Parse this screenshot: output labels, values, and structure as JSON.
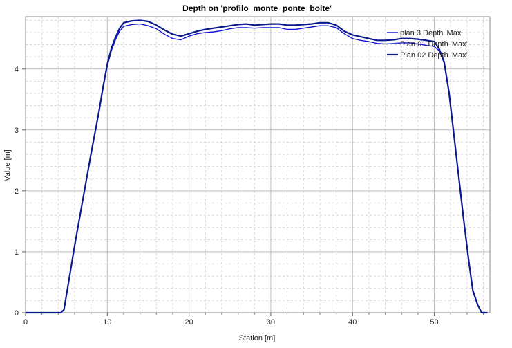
{
  "chart_data": {
    "type": "line",
    "title": "Depth on 'profilo_monte_ponte_boite'",
    "xlabel": "Station [m]",
    "ylabel": "Value [m]",
    "xlim": [
      0,
      56.8
    ],
    "ylim": [
      0,
      4.86
    ],
    "x_ticks": [
      0,
      10,
      20,
      30,
      40,
      50
    ],
    "y_ticks": [
      0,
      1,
      2,
      3,
      4
    ],
    "grid": true,
    "legend_position": "top-right",
    "series": [
      {
        "name": "plan 3 Depth 'Max'",
        "color": "#1515d6",
        "width": 1.4,
        "points": [
          [
            0,
            0
          ],
          [
            2,
            0
          ],
          [
            4.3,
            0
          ],
          [
            4.7,
            0.05
          ],
          [
            5.2,
            0.45
          ],
          [
            6,
            1.1
          ],
          [
            7,
            1.85
          ],
          [
            8,
            2.6
          ],
          [
            9,
            3.3
          ],
          [
            9.5,
            3.7
          ],
          [
            10,
            4.05
          ],
          [
            10.5,
            4.3
          ],
          [
            11,
            4.48
          ],
          [
            11.5,
            4.62
          ],
          [
            12,
            4.7
          ],
          [
            13,
            4.73
          ],
          [
            14,
            4.74
          ],
          [
            15,
            4.71
          ],
          [
            16,
            4.66
          ],
          [
            17,
            4.57
          ],
          [
            18,
            4.5
          ],
          [
            19,
            4.48
          ],
          [
            20,
            4.54
          ],
          [
            21,
            4.58
          ],
          [
            22,
            4.6
          ],
          [
            23,
            4.61
          ],
          [
            24,
            4.63
          ],
          [
            25,
            4.66
          ],
          [
            26,
            4.68
          ],
          [
            27,
            4.68
          ],
          [
            28,
            4.67
          ],
          [
            29,
            4.68
          ],
          [
            30,
            4.68
          ],
          [
            31,
            4.68
          ],
          [
            32,
            4.65
          ],
          [
            33,
            4.65
          ],
          [
            34,
            4.67
          ],
          [
            35,
            4.69
          ],
          [
            36,
            4.71
          ],
          [
            37,
            4.71
          ],
          [
            38,
            4.68
          ],
          [
            39,
            4.58
          ],
          [
            40,
            4.5
          ],
          [
            41,
            4.47
          ],
          [
            42,
            4.45
          ],
          [
            43,
            4.42
          ],
          [
            44,
            4.41
          ],
          [
            45,
            4.42
          ],
          [
            46,
            4.43
          ],
          [
            47,
            4.43
          ],
          [
            48,
            4.41
          ],
          [
            49,
            4.39
          ],
          [
            50,
            4.37
          ],
          [
            50.6,
            4.3
          ],
          [
            51.2,
            4.1
          ],
          [
            51.8,
            3.6
          ],
          [
            52.4,
            2.9
          ],
          [
            53,
            2.2
          ],
          [
            53.6,
            1.5
          ],
          [
            54.2,
            0.85
          ],
          [
            54.7,
            0.35
          ],
          [
            55.3,
            0.12
          ],
          [
            55.8,
            0
          ],
          [
            56.5,
            0
          ]
        ]
      },
      {
        "name": "Plan 01 Depth 'Max'",
        "color": "#4a7fd6",
        "width": 1.2,
        "points": [
          [
            0,
            0
          ],
          [
            2,
            0
          ],
          [
            4.3,
            0
          ],
          [
            4.7,
            0.05
          ],
          [
            5.2,
            0.45
          ],
          [
            6,
            1.1
          ],
          [
            7,
            1.85
          ],
          [
            8,
            2.6
          ],
          [
            9,
            3.32
          ],
          [
            9.5,
            3.72
          ],
          [
            10,
            4.08
          ],
          [
            10.5,
            4.34
          ],
          [
            11,
            4.52
          ],
          [
            11.5,
            4.67
          ],
          [
            12,
            4.76
          ],
          [
            13,
            4.79
          ],
          [
            14,
            4.8
          ],
          [
            15,
            4.78
          ],
          [
            16,
            4.72
          ],
          [
            17,
            4.64
          ],
          [
            18,
            4.57
          ],
          [
            19,
            4.54
          ],
          [
            20,
            4.58
          ],
          [
            21,
            4.62
          ],
          [
            22,
            4.65
          ],
          [
            23,
            4.67
          ],
          [
            24,
            4.69
          ],
          [
            25,
            4.71
          ],
          [
            26,
            4.73
          ],
          [
            27,
            4.74
          ],
          [
            28,
            4.72
          ],
          [
            29,
            4.73
          ],
          [
            30,
            4.74
          ],
          [
            31,
            4.74
          ],
          [
            32,
            4.72
          ],
          [
            33,
            4.72
          ],
          [
            34,
            4.73
          ],
          [
            35,
            4.74
          ],
          [
            36,
            4.76
          ],
          [
            37,
            4.76
          ],
          [
            38,
            4.72
          ],
          [
            39,
            4.62
          ],
          [
            40,
            4.56
          ],
          [
            41,
            4.53
          ],
          [
            42,
            4.5
          ],
          [
            43,
            4.47
          ],
          [
            44,
            4.47
          ],
          [
            45,
            4.48
          ],
          [
            46,
            4.5
          ],
          [
            47,
            4.5
          ],
          [
            48,
            4.49
          ],
          [
            49,
            4.47
          ],
          [
            50,
            4.45
          ],
          [
            50.6,
            4.33
          ],
          [
            51.2,
            4.12
          ],
          [
            51.8,
            3.62
          ],
          [
            52.4,
            2.92
          ],
          [
            53,
            2.22
          ],
          [
            53.6,
            1.52
          ],
          [
            54.2,
            0.87
          ],
          [
            54.7,
            0.37
          ],
          [
            55.3,
            0.13
          ],
          [
            55.8,
            0
          ],
          [
            56.5,
            0
          ]
        ]
      },
      {
        "name": "Plan 02 Depth 'Max'",
        "color": "#0a1a8c",
        "width": 2.2,
        "points": [
          [
            0,
            0
          ],
          [
            2,
            0
          ],
          [
            4.3,
            0
          ],
          [
            4.7,
            0.05
          ],
          [
            5.2,
            0.45
          ],
          [
            6,
            1.1
          ],
          [
            7,
            1.85
          ],
          [
            8,
            2.6
          ],
          [
            9,
            3.32
          ],
          [
            9.5,
            3.72
          ],
          [
            10,
            4.08
          ],
          [
            10.5,
            4.34
          ],
          [
            11,
            4.52
          ],
          [
            11.5,
            4.67
          ],
          [
            12,
            4.76
          ],
          [
            13,
            4.79
          ],
          [
            14,
            4.8
          ],
          [
            15,
            4.78
          ],
          [
            16,
            4.72
          ],
          [
            17,
            4.64
          ],
          [
            18,
            4.57
          ],
          [
            19,
            4.54
          ],
          [
            20,
            4.58
          ],
          [
            21,
            4.62
          ],
          [
            22,
            4.65
          ],
          [
            23,
            4.67
          ],
          [
            24,
            4.69
          ],
          [
            25,
            4.71
          ],
          [
            26,
            4.73
          ],
          [
            27,
            4.74
          ],
          [
            28,
            4.72
          ],
          [
            29,
            4.73
          ],
          [
            30,
            4.74
          ],
          [
            31,
            4.74
          ],
          [
            32,
            4.72
          ],
          [
            33,
            4.72
          ],
          [
            34,
            4.73
          ],
          [
            35,
            4.74
          ],
          [
            36,
            4.76
          ],
          [
            37,
            4.76
          ],
          [
            38,
            4.72
          ],
          [
            39,
            4.62
          ],
          [
            40,
            4.56
          ],
          [
            41,
            4.53
          ],
          [
            42,
            4.5
          ],
          [
            43,
            4.47
          ],
          [
            44,
            4.47
          ],
          [
            45,
            4.48
          ],
          [
            46,
            4.5
          ],
          [
            47,
            4.5
          ],
          [
            48,
            4.49
          ],
          [
            49,
            4.47
          ],
          [
            50,
            4.45
          ],
          [
            50.6,
            4.33
          ],
          [
            51.2,
            4.12
          ],
          [
            51.8,
            3.62
          ],
          [
            52.4,
            2.92
          ],
          [
            53,
            2.22
          ],
          [
            53.6,
            1.52
          ],
          [
            54.2,
            0.87
          ],
          [
            54.7,
            0.37
          ],
          [
            55.3,
            0.13
          ],
          [
            55.8,
            0
          ],
          [
            56.5,
            0
          ]
        ]
      }
    ]
  }
}
